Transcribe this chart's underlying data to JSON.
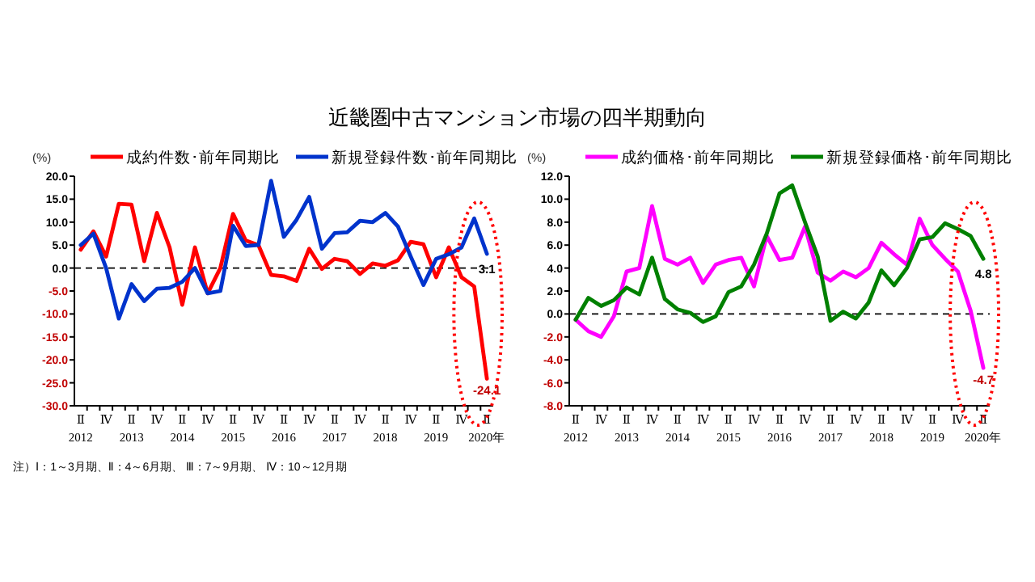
{
  "chart_data": [
    {
      "type": "line",
      "title": "近畿圏中古マンション市場の四半期動向",
      "ylabel": "(%)",
      "legend": "top",
      "annotations": [
        "注）Ⅰ：1～3月期、Ⅱ：4～6月期、 Ⅲ：7～9月期、 Ⅳ：10～12月期"
      ],
      "categories": [
        "Ⅱ\n2012",
        null,
        "Ⅳ",
        null,
        "Ⅱ\n2013",
        null,
        "Ⅳ",
        null,
        "Ⅱ\n2014",
        null,
        "Ⅳ",
        null,
        "Ⅱ\n2015",
        null,
        "Ⅳ",
        null,
        "Ⅱ\n2016",
        null,
        "Ⅳ",
        null,
        "Ⅱ\n2017",
        null,
        "Ⅳ",
        null,
        "Ⅱ\n2018",
        null,
        "Ⅳ",
        null,
        "Ⅱ\n2019",
        null,
        "Ⅳ",
        null,
        "Ⅱ\n2020年"
      ],
      "ylim": [
        -30,
        20
      ],
      "yticks": [
        {
          "value": 20,
          "label": "20.0"
        },
        {
          "value": 15,
          "label": "15.0"
        },
        {
          "value": 10,
          "label": "10.0"
        },
        {
          "value": 5,
          "label": "5.0"
        },
        {
          "value": 0,
          "label": "0.0"
        },
        {
          "value": -5,
          "label": "-5.0"
        },
        {
          "value": -10,
          "label": "-10.0"
        },
        {
          "value": -15,
          "label": "-15.0"
        },
        {
          "value": -20,
          "label": "-20.0"
        },
        {
          "value": -25,
          "label": "-25.0"
        },
        {
          "value": -30,
          "label": "-30.0"
        }
      ],
      "ref_lines": [
        {
          "axis": "y",
          "value": 0,
          "color": "#000000",
          "line_style": "dashed"
        }
      ],
      "series": [
        {
          "name": "成約件数･前年同期比",
          "color": "#ff0000",
          "values": [
            4,
            8,
            2.5,
            14,
            13.8,
            1.5,
            12,
            4.5,
            -8,
            4.5,
            -5.5,
            0,
            11.8,
            6,
            5,
            -1.5,
            -1.8,
            -2.8,
            4.2,
            -0.2,
            2,
            1.5,
            -1.3,
            1,
            0.5,
            1.7,
            5.7,
            5.2,
            -2,
            4.5,
            -2,
            -4,
            -24.1
          ],
          "value_labels": [
            null,
            null,
            null,
            null,
            null,
            null,
            null,
            null,
            null,
            null,
            null,
            null,
            null,
            null,
            null,
            null,
            null,
            null,
            null,
            null,
            null,
            null,
            null,
            null,
            null,
            null,
            null,
            null,
            null,
            null,
            null,
            null,
            "-24.1"
          ]
        },
        {
          "name": "新規登録件数･前年同期比",
          "color": "#0033cc",
          "values": [
            5,
            7.5,
            0,
            -11,
            -3.5,
            -7.2,
            -4.5,
            -4.3,
            -3,
            0,
            -5.5,
            -5,
            9.2,
            4.8,
            5,
            19,
            6.8,
            10.5,
            15.5,
            4.2,
            7.6,
            7.8,
            10.3,
            10,
            12,
            9,
            2.5,
            -3.7,
            2,
            3,
            4.5,
            10.8,
            3.1
          ],
          "value_labels": [
            null,
            null,
            null,
            null,
            null,
            null,
            null,
            null,
            null,
            null,
            null,
            null,
            null,
            null,
            null,
            null,
            null,
            null,
            null,
            null,
            null,
            null,
            null,
            null,
            null,
            null,
            null,
            null,
            null,
            null,
            null,
            null,
            "3.1"
          ]
        }
      ]
    },
    {
      "type": "line",
      "ylabel": "(%)",
      "legend": "top",
      "categories": [
        "Ⅱ\n2012",
        null,
        "Ⅳ",
        null,
        "Ⅱ\n2013",
        null,
        "Ⅳ",
        null,
        "Ⅱ\n2014",
        null,
        "Ⅳ",
        null,
        "Ⅱ\n2015",
        null,
        "Ⅳ",
        null,
        "Ⅱ\n2016",
        null,
        "Ⅳ",
        null,
        "Ⅱ\n2017",
        null,
        "Ⅳ",
        null,
        "Ⅱ\n2018",
        null,
        "Ⅳ",
        null,
        "Ⅱ\n2019",
        null,
        "Ⅳ",
        null,
        "Ⅱ\n2020年"
      ],
      "ylim": [
        -8,
        12
      ],
      "yticks": [
        {
          "value": 12,
          "label": "12.0"
        },
        {
          "value": 10,
          "label": "10.0"
        },
        {
          "value": 8,
          "label": "8.0"
        },
        {
          "value": 6,
          "label": "6.0"
        },
        {
          "value": 4,
          "label": "4.0"
        },
        {
          "value": 2,
          "label": "2.0"
        },
        {
          "value": 0,
          "label": "0.0"
        },
        {
          "value": -2,
          "label": "-2.0"
        },
        {
          "value": -4,
          "label": "-4.0"
        },
        {
          "value": -6,
          "label": "-6.0"
        },
        {
          "value": -8,
          "label": "-8.0"
        }
      ],
      "ref_lines": [
        {
          "axis": "y",
          "value": 0,
          "color": "#000000",
          "line_style": "dashed"
        }
      ],
      "series": [
        {
          "name": "成約価格･前年同期比",
          "color": "#ff00ff",
          "values": [
            -0.5,
            -1.5,
            -2,
            -0.2,
            3.7,
            4,
            9.4,
            4.8,
            4.3,
            4.9,
            2.7,
            4.3,
            4.7,
            4.9,
            2.4,
            6.8,
            4.7,
            4.9,
            7.6,
            3.6,
            2.9,
            3.7,
            3.2,
            4,
            6.2,
            5.2,
            4.3,
            8.3,
            6,
            4.8,
            3.7,
            0.3,
            -4.7
          ],
          "value_labels": [
            null,
            null,
            null,
            null,
            null,
            null,
            null,
            null,
            null,
            null,
            null,
            null,
            null,
            null,
            null,
            null,
            null,
            null,
            null,
            null,
            null,
            null,
            null,
            null,
            null,
            null,
            null,
            null,
            null,
            null,
            null,
            null,
            "-4.7"
          ]
        },
        {
          "name": "新規登録価格･前年同期比",
          "color": "#008000",
          "values": [
            -0.5,
            1.4,
            0.7,
            1.2,
            2.3,
            1.7,
            4.9,
            1.3,
            0.4,
            0.1,
            -0.7,
            -0.2,
            1.9,
            2.4,
            4.3,
            7,
            10.5,
            11.2,
            8,
            5,
            -0.6,
            0.2,
            -0.4,
            1,
            3.8,
            2.5,
            4,
            6.5,
            6.7,
            7.9,
            7.4,
            6.8,
            4.8
          ],
          "value_labels": [
            null,
            null,
            null,
            null,
            null,
            null,
            null,
            null,
            null,
            null,
            null,
            null,
            null,
            null,
            null,
            null,
            null,
            null,
            null,
            null,
            null,
            null,
            null,
            null,
            null,
            null,
            null,
            null,
            null,
            null,
            null,
            null,
            "4.8"
          ]
        }
      ]
    }
  ]
}
